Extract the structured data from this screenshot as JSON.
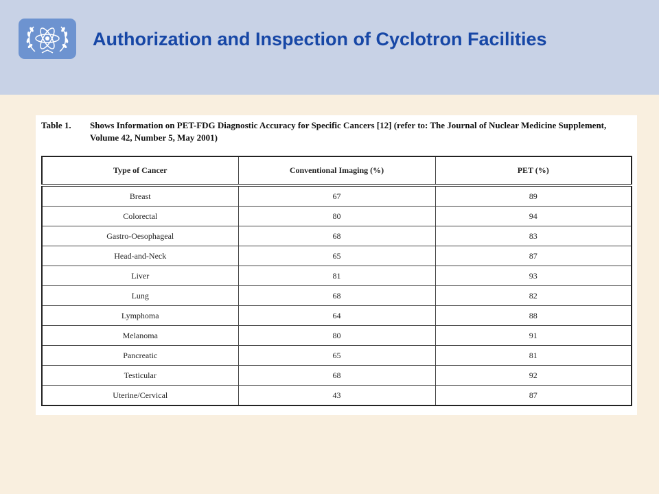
{
  "header": {
    "title": "Authorization and Inspection of Cyclotron Facilities",
    "logo_icon": "un-emblem-atom-icon",
    "background": "#c8d2e6",
    "title_color": "#1747a6"
  },
  "table": {
    "label": "Table 1.",
    "caption": "Shows Information on PET-FDG Diagnostic Accuracy for Specific Cancers [12] (refer to: The Journal of Nuclear Medicine Supplement, Volume 42, Number 5, May 2001)",
    "columns": [
      "Type of Cancer",
      "Conventional Imaging (%)",
      "PET (%)"
    ],
    "rows": [
      [
        "Breast",
        "67",
        "89"
      ],
      [
        "Colorectal",
        "80",
        "94"
      ],
      [
        "Gastro-Oesophageal",
        "68",
        "83"
      ],
      [
        "Head-and-Neck",
        "65",
        "87"
      ],
      [
        "Liver",
        "81",
        "93"
      ],
      [
        "Lung",
        "68",
        "82"
      ],
      [
        "Lymphoma",
        "64",
        "88"
      ],
      [
        "Melanoma",
        "80",
        "91"
      ],
      [
        "Pancreatic",
        "65",
        "81"
      ],
      [
        "Testicular",
        "68",
        "92"
      ],
      [
        "Uterine/Cervical",
        "43",
        "87"
      ]
    ]
  }
}
